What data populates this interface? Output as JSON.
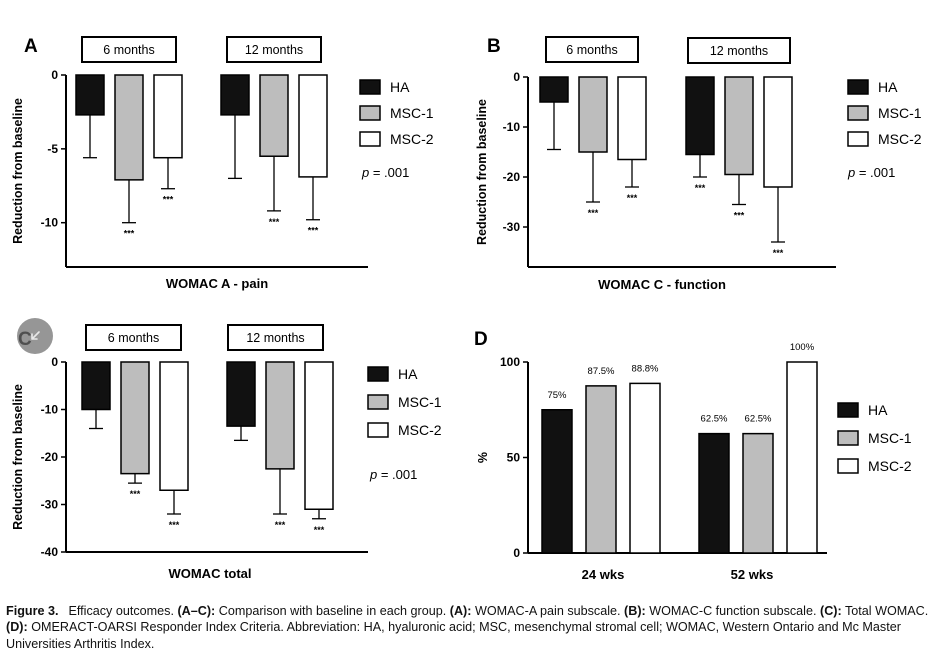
{
  "legend": {
    "items": [
      {
        "label": "HA",
        "color": "#111111"
      },
      {
        "label": "MSC-1",
        "color": "#bdbdbd"
      },
      {
        "label": "MSC-2",
        "color": "#ffffff"
      }
    ]
  },
  "stars": "***",
  "chart_data": [
    {
      "panel": "A",
      "type": "bar",
      "xlabel": "WOMAC A - pain",
      "ylabel": "Reduction from baseline",
      "groups": [
        "6 months",
        "12 months"
      ],
      "ylim": [
        -13,
        0
      ],
      "yticks": [
        0,
        -5,
        -10
      ],
      "series": [
        {
          "name": "HA",
          "values": [
            -2.7,
            -2.7
          ],
          "error": [
            2.9,
            4.3
          ],
          "significance": [
            "",
            ""
          ]
        },
        {
          "name": "MSC-1",
          "values": [
            -7.1,
            -5.5
          ],
          "error": [
            2.9,
            3.7
          ],
          "significance": [
            "***",
            "***"
          ]
        },
        {
          "name": "MSC-2",
          "values": [
            -5.6,
            -6.9
          ],
          "error": [
            2.1,
            2.9
          ],
          "significance": [
            "***",
            "***"
          ]
        }
      ],
      "pvalue": "p = .001"
    },
    {
      "panel": "B",
      "type": "bar",
      "xlabel": "WOMAC C - function",
      "ylabel": "Reduction from baseline",
      "groups": [
        "6 months",
        "12 months"
      ],
      "ylim": [
        -38,
        0
      ],
      "yticks": [
        0,
        -10,
        -20,
        -30
      ],
      "series": [
        {
          "name": "HA",
          "values": [
            -5,
            -15.5
          ],
          "error": [
            9.5,
            4.5
          ],
          "significance": [
            "",
            "***"
          ]
        },
        {
          "name": "MSC-1",
          "values": [
            -15,
            -19.5
          ],
          "error": [
            10,
            6
          ],
          "significance": [
            "***",
            "***"
          ]
        },
        {
          "name": "MSC-2",
          "values": [
            -16.5,
            -22
          ],
          "error": [
            5.5,
            11
          ],
          "significance": [
            "***",
            "***"
          ]
        }
      ],
      "pvalue": "p = .001"
    },
    {
      "panel": "C",
      "type": "bar",
      "xlabel": "WOMAC total",
      "ylabel": "Reduction from baseline",
      "groups": [
        "6 months",
        "12 months"
      ],
      "ylim": [
        -40,
        0
      ],
      "yticks": [
        0,
        -10,
        -20,
        -30,
        -40
      ],
      "series": [
        {
          "name": "HA",
          "values": [
            -10,
            -13.5
          ],
          "error": [
            4,
            3
          ],
          "significance": [
            "",
            ""
          ]
        },
        {
          "name": "MSC-1",
          "values": [
            -23.5,
            -22.5
          ],
          "error": [
            2,
            9.5
          ],
          "significance": [
            "***",
            "***"
          ]
        },
        {
          "name": "MSC-2",
          "values": [
            -27,
            -31
          ],
          "error": [
            5,
            2
          ],
          "significance": [
            "***",
            "***"
          ]
        }
      ],
      "pvalue": "p = .001"
    },
    {
      "panel": "D",
      "type": "bar",
      "ylabel": "%",
      "categories": [
        "24 wks",
        "52 wks"
      ],
      "ylim": [
        0,
        100
      ],
      "yticks": [
        0,
        50,
        100
      ],
      "series": [
        {
          "name": "HA",
          "values": [
            75,
            62.5
          ],
          "labels": [
            "75%",
            "62.5%"
          ]
        },
        {
          "name": "MSC-1",
          "values": [
            87.5,
            62.5
          ],
          "labels": [
            "87.5%",
            "62.5%"
          ]
        },
        {
          "name": "MSC-2",
          "values": [
            88.8,
            100
          ],
          "labels": [
            "88.8%",
            "100%"
          ]
        }
      ]
    }
  ],
  "caption": {
    "figure_label": "Figure 3.",
    "title": "Efficacy outcomes.",
    "range_label": "(A–C):",
    "range_text": "Comparison with baseline in each group.",
    "a_label": "(A):",
    "a_text": "WOMAC-A pain subscale.",
    "b_label": "(B):",
    "b_text": "WOMAC-C function subscale.",
    "c_label": "(C):",
    "c_text": "Total WOMAC.",
    "d_label": "(D):",
    "d_text": "OMERACT-OARSI Responder Index Criteria. Abbreviation: HA, hyaluronic acid; MSC, mesenchymal stromal cell; WOMAC, Western Ontario and Mc Master Universities Arthritis Index."
  }
}
